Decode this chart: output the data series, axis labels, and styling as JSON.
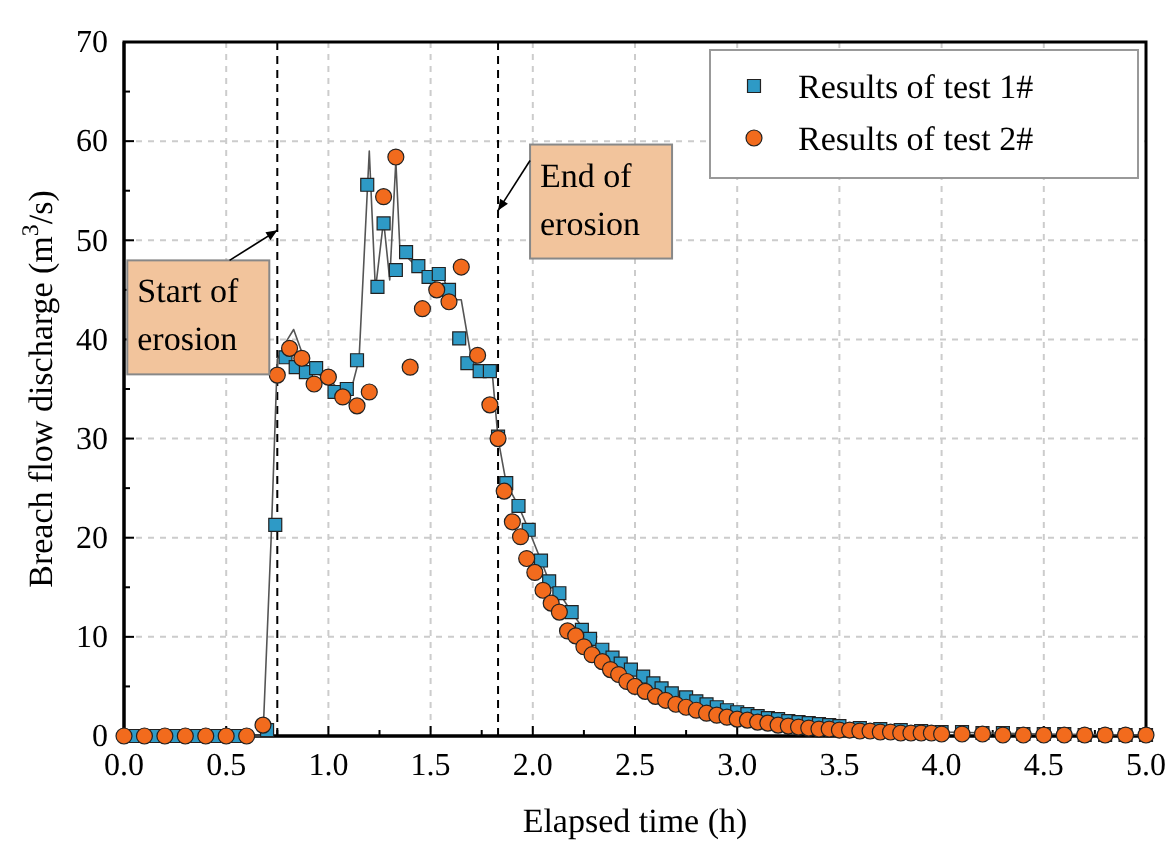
{
  "chart_data": {
    "type": "scatter",
    "xlabel": "Elapsed time (h)",
    "ylabel": "Breach flow discharge (m$^{3}$/s)",
    "xlim": [
      0,
      5
    ],
    "ylim": [
      0,
      70
    ],
    "xticks": [
      {
        "value": 0,
        "label": "0.0"
      },
      {
        "value": 0.5,
        "label": "0.5"
      },
      {
        "value": 1,
        "label": "1.0"
      },
      {
        "value": 1.5,
        "label": "1.5"
      },
      {
        "value": 2,
        "label": "2.0"
      },
      {
        "value": 2.5,
        "label": "2.5"
      },
      {
        "value": 3,
        "label": "3.0"
      },
      {
        "value": 3.5,
        "label": "3.5"
      },
      {
        "value": 4,
        "label": "4.0"
      },
      {
        "value": 4.5,
        "label": "4.5"
      },
      {
        "value": 5,
        "label": "5.0"
      }
    ],
    "yticks": [
      0,
      10,
      20,
      30,
      40,
      50,
      60,
      70
    ],
    "grid": true,
    "legend": "top right",
    "series": [
      {
        "type": "line",
        "color": "#555555",
        "marker": "none",
        "line_style": "solid",
        "x": [
          0,
          0.68,
          0.72,
          0.75,
          0.8,
          0.83,
          0.9,
          1.0,
          1.1,
          1.15,
          1.2,
          1.23,
          1.27,
          1.3,
          1.33,
          1.35,
          1.4,
          1.45,
          1.5,
          1.55,
          1.6,
          1.65,
          1.7,
          1.75,
          1.8,
          1.83,
          1.87,
          1.93,
          1.98,
          2.04,
          2.08,
          2.13,
          2.19,
          2.28,
          2.39,
          2.48,
          2.59,
          2.68,
          2.8,
          3.0,
          3.2,
          3.5,
          4.0,
          4.5,
          5.0
        ],
        "values": [
          0,
          0,
          20,
          38,
          40,
          41,
          37,
          36,
          34,
          38,
          59,
          45,
          52,
          46,
          58,
          49,
          48,
          47,
          46,
          47,
          44,
          44,
          38,
          37,
          37,
          30,
          25.5,
          23.2,
          20.8,
          17.7,
          15.6,
          14.4,
          12.5,
          9.8,
          7.9,
          6.7,
          5.3,
          4.3,
          3.5,
          2.4,
          1.7,
          1.0,
          0.4,
          0.2,
          0.1
        ]
      },
      {
        "name": "Results of test 1#",
        "color": "#2e9ac6",
        "marker": "square",
        "x": [
          0.05,
          0.15,
          0.25,
          0.35,
          0.45,
          0.55,
          0.7,
          0.74,
          0.79,
          0.84,
          0.89,
          0.94,
          1.03,
          1.09,
          1.14,
          1.19,
          1.24,
          1.27,
          1.33,
          1.38,
          1.44,
          1.49,
          1.54,
          1.59,
          1.64,
          1.68,
          1.74,
          1.79,
          1.83,
          1.87,
          1.93,
          1.98,
          2.04,
          2.08,
          2.13,
          2.19,
          2.24,
          2.28,
          2.34,
          2.39,
          2.43,
          2.48,
          2.54,
          2.59,
          2.63,
          2.68,
          2.75,
          2.8,
          2.85,
          2.9,
          2.95,
          3.0,
          3.05,
          3.1,
          3.15,
          3.2,
          3.25,
          3.3,
          3.35,
          3.4,
          3.45,
          3.5,
          3.6,
          3.7,
          3.8,
          3.9,
          4.0,
          4.1,
          4.2,
          4.3,
          4.4,
          4.5,
          4.6,
          4.7,
          4.8,
          4.9,
          5.0
        ],
        "values": [
          0,
          0,
          0,
          0,
          0,
          0,
          0.6,
          21.3,
          38.2,
          37.2,
          36.7,
          37.1,
          34.7,
          35.0,
          37.9,
          55.6,
          45.3,
          51.7,
          47.0,
          48.8,
          47.4,
          46.3,
          46.6,
          45.0,
          40.1,
          37.6,
          36.8,
          36.8,
          30.2,
          25.5,
          23.2,
          20.8,
          17.7,
          15.6,
          14.4,
          12.5,
          10.7,
          9.8,
          8.7,
          7.9,
          7.3,
          6.7,
          6.0,
          5.3,
          4.8,
          4.3,
          3.9,
          3.5,
          3.2,
          2.9,
          2.6,
          2.4,
          2.2,
          2.0,
          1.8,
          1.7,
          1.5,
          1.4,
          1.3,
          1.2,
          1.1,
          1.0,
          0.8,
          0.7,
          0.6,
          0.5,
          0.4,
          0.4,
          0.3,
          0.3,
          0.2,
          0.2,
          0.2,
          0.1,
          0.1,
          0.1,
          0.1
        ]
      },
      {
        "name": "Results of test 2#",
        "color": "#f26b1d",
        "marker": "circle",
        "x": [
          0,
          0.1,
          0.2,
          0.3,
          0.4,
          0.5,
          0.6,
          0.68,
          0.75,
          0.81,
          0.87,
          0.93,
          1.0,
          1.07,
          1.14,
          1.2,
          1.27,
          1.33,
          1.4,
          1.46,
          1.53,
          1.59,
          1.65,
          1.73,
          1.79,
          1.83,
          1.86,
          1.9,
          1.94,
          1.97,
          2.01,
          2.05,
          2.09,
          2.13,
          2.17,
          2.21,
          2.25,
          2.29,
          2.34,
          2.38,
          2.42,
          2.46,
          2.5,
          2.55,
          2.6,
          2.65,
          2.7,
          2.75,
          2.8,
          2.85,
          2.9,
          2.95,
          3.0,
          3.05,
          3.1,
          3.15,
          3.2,
          3.25,
          3.3,
          3.35,
          3.4,
          3.45,
          3.5,
          3.55,
          3.6,
          3.65,
          3.7,
          3.75,
          3.8,
          3.85,
          3.9,
          3.95,
          4.0,
          4.1,
          4.2,
          4.3,
          4.4,
          4.5,
          4.6,
          4.7,
          4.8,
          4.9,
          5.0
        ],
        "values": [
          0,
          0,
          0,
          0,
          0,
          0,
          0,
          1.1,
          36.4,
          39.1,
          38.1,
          35.5,
          36.2,
          34.2,
          33.3,
          34.7,
          54.4,
          58.4,
          37.2,
          43.1,
          45.0,
          43.8,
          47.3,
          38.4,
          33.4,
          30.0,
          24.7,
          21.6,
          20.1,
          17.9,
          16.5,
          14.7,
          13.4,
          12.5,
          10.6,
          10.1,
          9.0,
          8.2,
          7.5,
          6.7,
          6.2,
          5.5,
          5.0,
          4.5,
          4.0,
          3.6,
          3.2,
          2.9,
          2.6,
          2.3,
          2.1,
          1.9,
          1.7,
          1.6,
          1.4,
          1.3,
          1.1,
          1.0,
          0.9,
          0.8,
          0.7,
          0.7,
          0.6,
          0.6,
          0.5,
          0.5,
          0.4,
          0.4,
          0.3,
          0.3,
          0.3,
          0.3,
          0.2,
          0.2,
          0.2,
          0.1,
          0.1,
          0.1,
          0.1,
          0.1,
          0.1,
          0.1,
          0.1
        ]
      }
    ],
    "ref_lines": [
      {
        "axis": "x",
        "value": 0.75,
        "line_style": "dashed",
        "color": "#000000"
      },
      {
        "axis": "x",
        "value": 1.83,
        "line_style": "dashed",
        "color": "#000000"
      }
    ],
    "annotations": [
      {
        "text": "Start of\nerosion",
        "x": 0.75,
        "y": 51
      },
      {
        "text": "End of\nerosion",
        "x": 1.83,
        "y": 53
      }
    ]
  }
}
